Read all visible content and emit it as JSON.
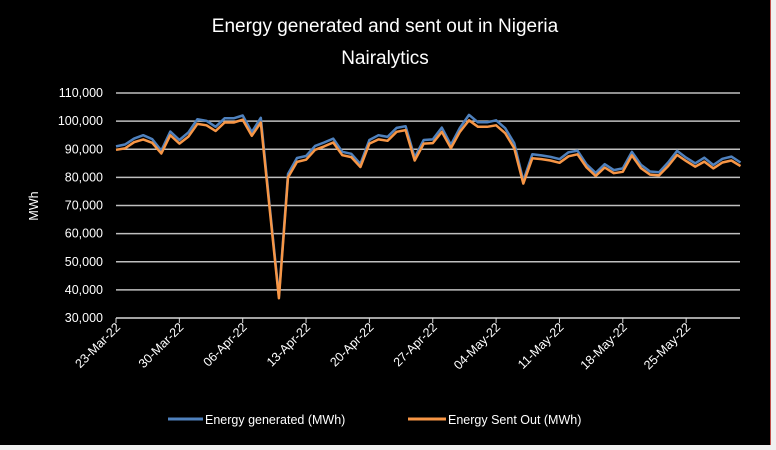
{
  "chart_data": {
    "type": "line",
    "title": "Energy generated and sent out in Nigeria",
    "subtitle": "Nairalytics",
    "xlabel": "",
    "ylabel": "MWh",
    "ylim": [
      30000,
      110000
    ],
    "yticks": [
      "30,000",
      "40,000",
      "50,000",
      "60,000",
      "70,000",
      "80,000",
      "90,000",
      "100,000",
      "110,000"
    ],
    "ytick_values": [
      30000,
      40000,
      50000,
      60000,
      70000,
      80000,
      90000,
      100000,
      110000
    ],
    "x_start": "23-Mar-22",
    "x_step_days": 1,
    "xtick_labels": [
      "23-Mar-22",
      "30-Mar-22",
      "06-Apr-22",
      "13-Apr-22",
      "20-Apr-22",
      "27-Apr-22",
      "04-May-22",
      "11-May-22",
      "18-May-22",
      "25-May-22"
    ],
    "xtick_every": 7,
    "grid": true,
    "legend_position": "bottom",
    "series": [
      {
        "name": "Energy generated (MWh)",
        "color": "#4f81bd",
        "values": [
          91000,
          91700,
          93800,
          95000,
          93600,
          89500,
          96300,
          93300,
          96000,
          100700,
          100100,
          98000,
          101000,
          101000,
          102000,
          96100,
          101200,
          69000,
          37800,
          81200,
          86900,
          87600,
          91200,
          92400,
          93800,
          89100,
          88400,
          84800,
          93300,
          95000,
          94400,
          97600,
          98200,
          87100,
          93300,
          93500,
          97700,
          91600,
          97600,
          102200,
          99600,
          99600,
          100300,
          97500,
          92200,
          78800,
          88200,
          87800,
          87300,
          86500,
          88900,
          89500,
          84600,
          81600,
          84700,
          82600,
          83200,
          89100,
          84500,
          82100,
          81800,
          85300,
          89400,
          87000,
          85000,
          87000,
          84400,
          86600,
          87400,
          85300
        ]
      },
      {
        "name": "Energy Sent Out (MWh)",
        "color": "#f79646",
        "values": [
          89800,
          90300,
          92500,
          93500,
          92300,
          88500,
          95000,
          92000,
          94500,
          99000,
          98500,
          96500,
          99500,
          99500,
          100500,
          94800,
          99500,
          68000,
          37000,
          80000,
          85500,
          86300,
          89800,
          91000,
          92400,
          87900,
          87200,
          83700,
          92000,
          93500,
          93000,
          96200,
          96800,
          86000,
          92000,
          92200,
          96200,
          90400,
          96200,
          100300,
          98000,
          98000,
          98500,
          95700,
          90400,
          77800,
          86800,
          86500,
          86000,
          85200,
          87500,
          88200,
          83500,
          80500,
          83500,
          81500,
          82000,
          87800,
          83300,
          81000,
          80700,
          84000,
          88000,
          85800,
          83800,
          85600,
          83200,
          85300,
          86000,
          84000
        ]
      }
    ]
  }
}
